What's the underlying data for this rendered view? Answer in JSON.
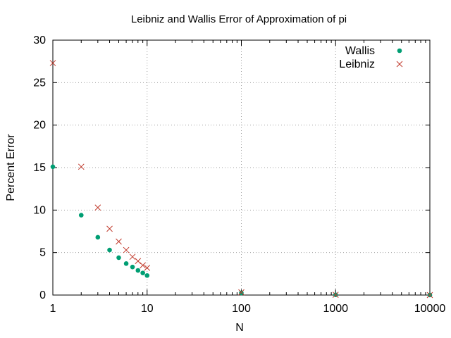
{
  "chart_data": {
    "type": "scatter",
    "title": "Leibniz and Wallis Error of Approximation of pi",
    "xlabel": "N",
    "ylabel": "Percent Error",
    "xscale": "log",
    "xlim": [
      1,
      10000
    ],
    "ylim": [
      0,
      30
    ],
    "xticks": [
      1,
      10,
      100,
      1000,
      10000
    ],
    "xtick_labels": [
      "1",
      "10",
      "100",
      "1000",
      "10000"
    ],
    "yticks": [
      0,
      5,
      10,
      15,
      20,
      25,
      30
    ],
    "ytick_labels": [
      "0",
      "5",
      "10",
      "15",
      "20",
      "25",
      "30"
    ],
    "grid": true,
    "legend_position": "top-right",
    "series": [
      {
        "name": "Wallis",
        "marker": "filled-circle",
        "color": "#009e73",
        "x": [
          1,
          2,
          3,
          4,
          5,
          6,
          7,
          8,
          9,
          10,
          100,
          1000,
          10000
        ],
        "y": [
          15.1,
          9.4,
          6.8,
          5.3,
          4.4,
          3.7,
          3.3,
          2.9,
          2.6,
          2.3,
          0.25,
          0.025,
          0.0025
        ]
      },
      {
        "name": "Leibniz",
        "marker": "x",
        "color": "#c0392b",
        "x": [
          1,
          2,
          3,
          4,
          5,
          6,
          7,
          8,
          9,
          10,
          100,
          1000,
          10000
        ],
        "y": [
          27.3,
          15.1,
          10.3,
          7.8,
          6.3,
          5.3,
          4.5,
          4.0,
          3.5,
          3.2,
          0.32,
          0.032,
          0.0032
        ]
      }
    ]
  }
}
